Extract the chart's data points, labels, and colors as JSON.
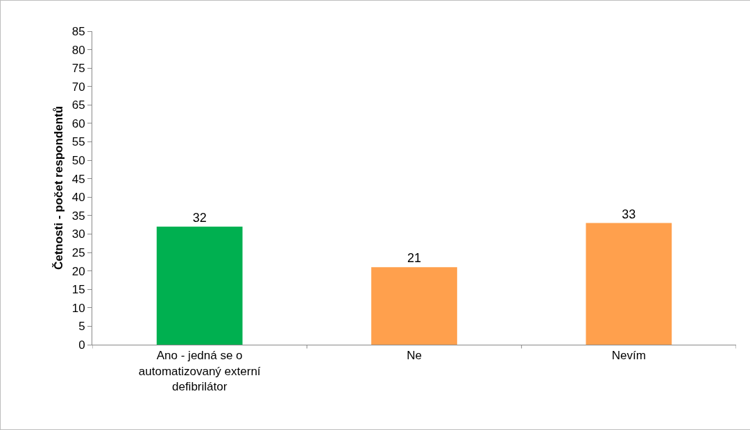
{
  "chart_data": {
    "type": "bar",
    "ylabel": "Četnosti - počet respondentů",
    "categories": [
      "Ano - jedná se o automatizovaný externí defibrilátor",
      "Ne",
      "Nevím"
    ],
    "values": [
      32,
      21,
      33
    ],
    "colors": [
      "#00b050",
      "#ffa04d",
      "#ffa04d"
    ],
    "ylim": [
      0,
      85
    ],
    "yticks": [
      0,
      5,
      10,
      15,
      20,
      25,
      30,
      35,
      40,
      45,
      50,
      55,
      60,
      65,
      70,
      75,
      80,
      85
    ],
    "data_labels": true
  }
}
